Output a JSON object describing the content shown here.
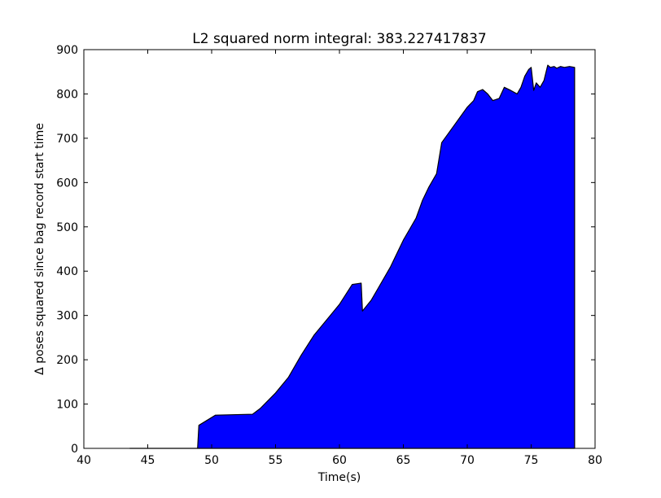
{
  "chart_data": {
    "type": "area",
    "title": "L2 squared norm integral: 383.227417837",
    "xlabel": "Time(s)",
    "ylabel": "Δ poses squared since bag record start time",
    "xlim": [
      40,
      80
    ],
    "ylim": [
      0,
      900
    ],
    "xticks": [
      40,
      45,
      50,
      55,
      60,
      65,
      70,
      75,
      80
    ],
    "yticks": [
      0,
      100,
      200,
      300,
      400,
      500,
      600,
      700,
      800,
      900
    ],
    "grid": false,
    "legend": "none",
    "fill_color": "#0000ff",
    "line_color": "#000000",
    "series": [
      {
        "x": [
          43.6,
          48.9,
          49.0,
          50.3,
          53.2,
          53.8,
          55.0,
          56.0,
          57.0,
          58.0,
          59.0,
          60.0,
          61.0,
          61.7,
          61.8,
          62.5,
          63.0,
          63.5,
          64.0,
          64.5,
          65.0,
          65.5,
          66.0,
          66.5,
          67.0,
          67.6,
          68.0,
          69.0,
          70.0,
          70.5,
          70.8,
          71.2,
          71.6,
          72.0,
          72.5,
          72.9,
          73.4,
          73.9,
          74.2,
          74.5,
          74.8,
          75.0,
          75.2,
          75.4,
          75.7,
          76.0,
          76.3,
          76.5,
          76.8,
          77.0,
          77.3,
          77.6,
          78.0,
          78.4
        ],
        "y": [
          0,
          0,
          52,
          75,
          77,
          90,
          125,
          160,
          210,
          255,
          290,
          325,
          370,
          373,
          310,
          335,
          360,
          385,
          410,
          440,
          470,
          495,
          520,
          560,
          590,
          620,
          690,
          730,
          770,
          785,
          805,
          810,
          800,
          785,
          790,
          815,
          808,
          800,
          815,
          840,
          855,
          860,
          808,
          825,
          815,
          830,
          865,
          860,
          862,
          858,
          862,
          860,
          862,
          860
        ]
      }
    ]
  }
}
